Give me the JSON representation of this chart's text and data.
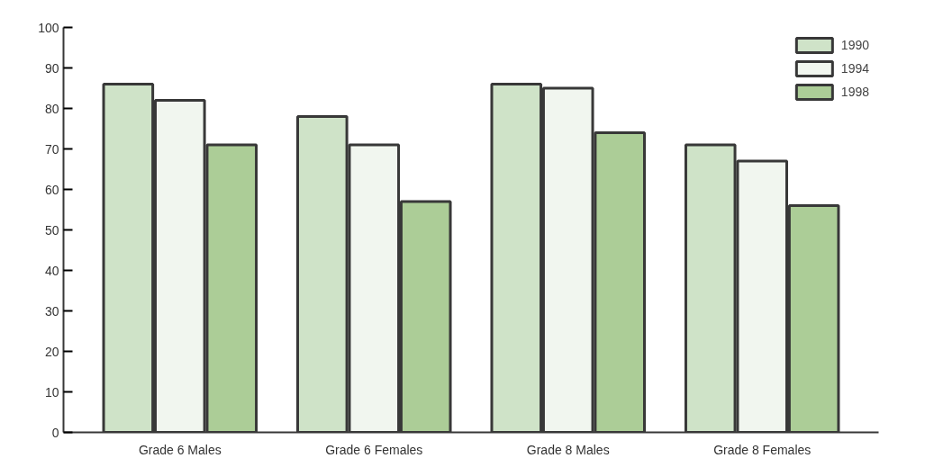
{
  "chart_data": {
    "type": "bar",
    "categories": [
      "Grade 6 Males",
      "Grade 6 Females",
      "Grade 8 Males",
      "Grade 8 Females"
    ],
    "series": [
      {
        "name": "1990",
        "color": "#cfe3c8",
        "values": [
          86,
          78,
          86,
          71
        ]
      },
      {
        "name": "1994",
        "color": "#f1f6ef",
        "values": [
          82,
          71,
          85,
          67
        ]
      },
      {
        "name": "1998",
        "color": "#accd97",
        "values": [
          71,
          57,
          74,
          56
        ]
      }
    ],
    "ylim": [
      0,
      100
    ],
    "yticks": [
      0,
      10,
      20,
      30,
      40,
      50,
      60,
      70,
      80,
      90,
      100
    ],
    "grid": false,
    "legend": "top right"
  }
}
